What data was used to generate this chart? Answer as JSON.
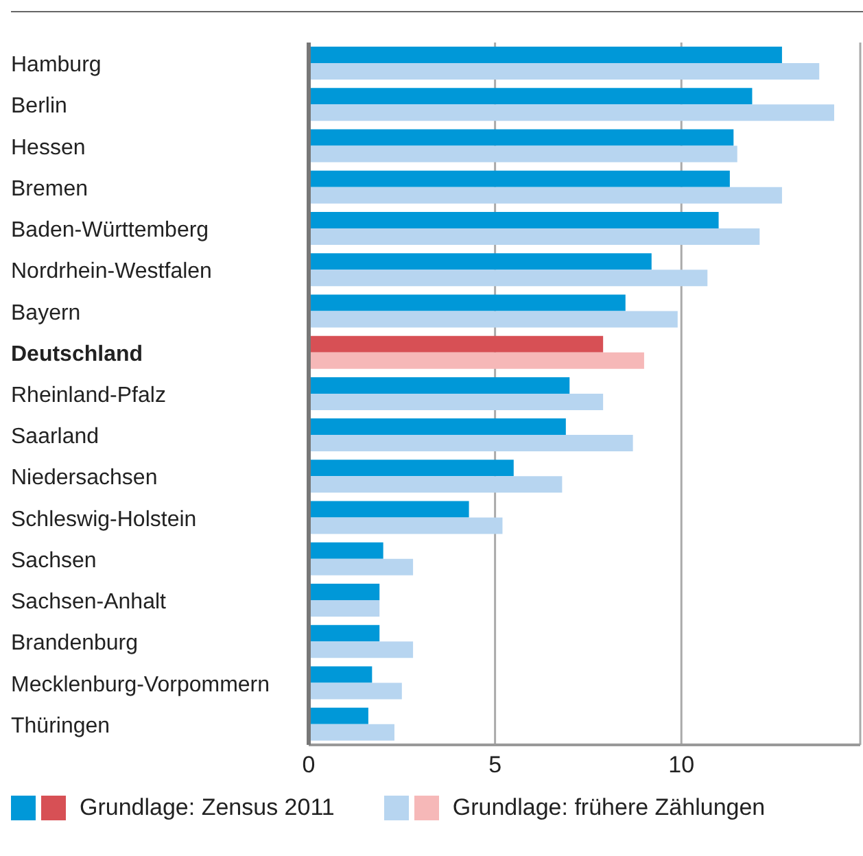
{
  "chart_data": {
    "type": "bar",
    "orientation": "horizontal",
    "categories": [
      "Hamburg",
      "Berlin",
      "Hessen",
      "Bremen",
      "Baden-Württemberg",
      "Nordrhein-Westfalen",
      "Bayern",
      "Deutschland",
      "Rheinland-Pfalz",
      "Saarland",
      "Niedersachsen",
      "Schleswig-Holstein",
      "Sachsen",
      "Sachsen-Anhalt",
      "Brandenburg",
      "Mecklenburg-Vorpommern",
      "Thüringen"
    ],
    "series": [
      {
        "name": "Grundlage: Zensus 2011",
        "color": "#0098d8",
        "colors": [
          "#0098d8",
          "#0098d8",
          "#0098d8",
          "#0098d8",
          "#0098d8",
          "#0098d8",
          "#0098d8",
          "#d75055",
          "#0098d8",
          "#0098d8",
          "#0098d8",
          "#0098d8",
          "#0098d8",
          "#0098d8",
          "#0098d8",
          "#0098d8",
          "#0098d8"
        ],
        "values": [
          12.7,
          11.9,
          11.4,
          11.3,
          11.0,
          9.2,
          8.5,
          7.9,
          7.0,
          6.9,
          5.5,
          4.3,
          2.0,
          1.9,
          1.9,
          1.7,
          1.6
        ]
      },
      {
        "name": "Grundlage: frühere Zählungen",
        "color": "#b7d5f0",
        "colors": [
          "#b7d5f0",
          "#b7d5f0",
          "#b7d5f0",
          "#b7d5f0",
          "#b7d5f0",
          "#b7d5f0",
          "#b7d5f0",
          "#f6b8b8",
          "#b7d5f0",
          "#b7d5f0",
          "#b7d5f0",
          "#b7d5f0",
          "#b7d5f0",
          "#b7d5f0",
          "#b7d5f0",
          "#b7d5f0",
          "#b7d5f0"
        ],
        "values": [
          13.7,
          14.1,
          11.5,
          12.7,
          12.1,
          10.7,
          9.9,
          9.0,
          7.9,
          8.7,
          6.8,
          5.2,
          2.8,
          1.9,
          2.8,
          2.5,
          2.3
        ]
      }
    ],
    "xlim": [
      0,
      14.8
    ],
    "xticks": [
      0,
      5,
      10
    ],
    "grid": "x",
    "legend": "bottom"
  }
}
